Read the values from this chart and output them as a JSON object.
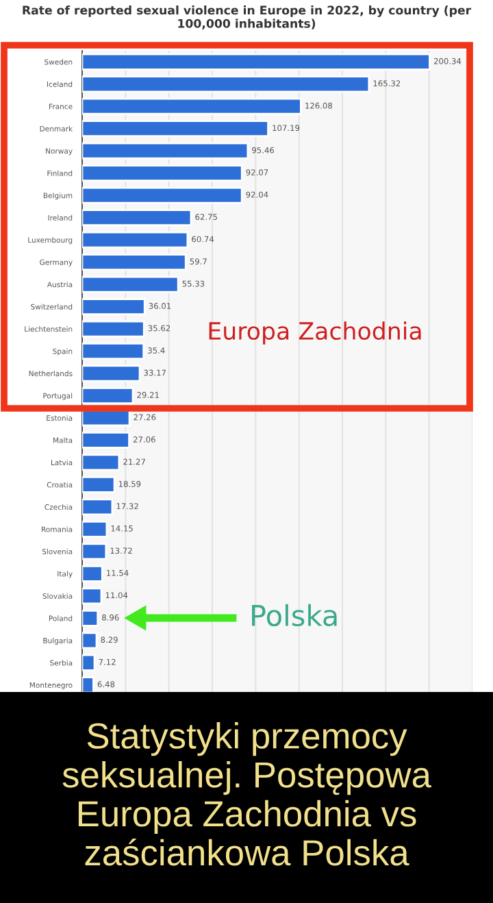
{
  "chart_data": {
    "type": "bar",
    "orientation": "horizontal",
    "title": "Rate of reported sexual violence in Europe in 2022, by country (per 100,000 inhabitants)",
    "categories": [
      "Sweden",
      "Iceland",
      "France",
      "Denmark",
      "Norway",
      "Finland",
      "Belgium",
      "Ireland",
      "Luxembourg",
      "Germany",
      "Austria",
      "Switzerland",
      "Liechtenstein",
      "Spain",
      "Netherlands",
      "Portugal",
      "Estonia",
      "Malta",
      "Latvia",
      "Croatia",
      "Czechia",
      "Romania",
      "Slovenia",
      "Italy",
      "Slovakia",
      "Poland",
      "Bulgaria",
      "Serbia",
      "Montenegro"
    ],
    "values": [
      200.34,
      165.32,
      126.08,
      107.19,
      95.46,
      92.07,
      92.04,
      62.75,
      60.74,
      59.7,
      55.33,
      36.01,
      35.62,
      35.4,
      33.17,
      29.21,
      27.26,
      27.06,
      21.27,
      18.59,
      17.32,
      14.15,
      13.72,
      11.54,
      11.04,
      8.96,
      8.29,
      7.12,
      6.48
    ],
    "color": "#2d6fd6",
    "data_labels": true,
    "xlim": [
      0,
      225
    ],
    "xticks": [
      {
        "value": 0,
        "label": null
      },
      {
        "value": 25,
        "label": null
      },
      {
        "value": 50,
        "label": null
      },
      {
        "value": 75,
        "label": null
      },
      {
        "value": 100,
        "label": null
      },
      {
        "value": 125,
        "label": null
      },
      {
        "value": 150,
        "label": null
      },
      {
        "value": 175,
        "label": null
      },
      {
        "value": 200,
        "label": null
      },
      {
        "value": 225,
        "label": null
      }
    ],
    "tick_labels": "y",
    "grid": "x",
    "legend": false,
    "annotations": [
      "Europa Zachodnia",
      "Polska",
      "Statystyki przemocy seksualnej. Postępowa Europa Zachodnia vs zaściankowa Polska"
    ]
  }
}
